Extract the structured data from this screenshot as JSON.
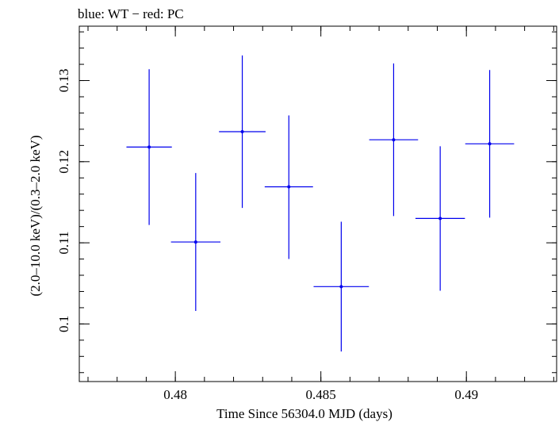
{
  "chart_data": {
    "type": "scatter",
    "title": "blue: WT − red: PC",
    "xlabel": "Time Since 56304.0 MJD (days)",
    "ylabel": "(2.0–10.0 keV)/(0.3–2.0 keV)",
    "xlim": [
      0.4767,
      0.4931
    ],
    "ylim": [
      0.0929,
      0.1367
    ],
    "xticks": [
      {
        "value": 0.48,
        "label": "0.48"
      },
      {
        "value": 0.485,
        "label": "0.485"
      },
      {
        "value": 0.49,
        "label": "0.49"
      }
    ],
    "yticks": [
      {
        "value": 0.1,
        "label": "0.1"
      },
      {
        "value": 0.11,
        "label": "0.11"
      },
      {
        "value": 0.12,
        "label": "0.12"
      },
      {
        "value": 0.13,
        "label": "0.13"
      }
    ],
    "x_minor_step": 0.001,
    "y_minor_step": 0.002,
    "grid": false,
    "series": [
      {
        "color": "#0000ee",
        "points": [
          {
            "x": 0.4791,
            "y": 0.1218,
            "xerr": 0.00078,
            "yerr_low": 0.0096,
            "yerr_high": 0.0096
          },
          {
            "x": 0.4807,
            "y": 0.1101,
            "xerr": 0.00085,
            "yerr_low": 0.0085,
            "yerr_high": 0.0085
          },
          {
            "x": 0.4823,
            "y": 0.1237,
            "xerr": 0.0008,
            "yerr_low": 0.0094,
            "yerr_high": 0.0094
          },
          {
            "x": 0.4839,
            "y": 0.1169,
            "xerr": 0.00083,
            "yerr_low": 0.0089,
            "yerr_high": 0.0088
          },
          {
            "x": 0.4857,
            "y": 0.1046,
            "xerr": 0.00095,
            "yerr_low": 0.008,
            "yerr_high": 0.008
          },
          {
            "x": 0.4875,
            "y": 0.1227,
            "xerr": 0.00084,
            "yerr_low": 0.0094,
            "yerr_high": 0.0094
          },
          {
            "x": 0.4891,
            "y": 0.113,
            "xerr": 0.00085,
            "yerr_low": 0.0089,
            "yerr_high": 0.0089
          },
          {
            "x": 0.4908,
            "y": 0.1222,
            "xerr": 0.00084,
            "yerr_low": 0.0091,
            "yerr_high": 0.0091
          }
        ]
      }
    ]
  }
}
